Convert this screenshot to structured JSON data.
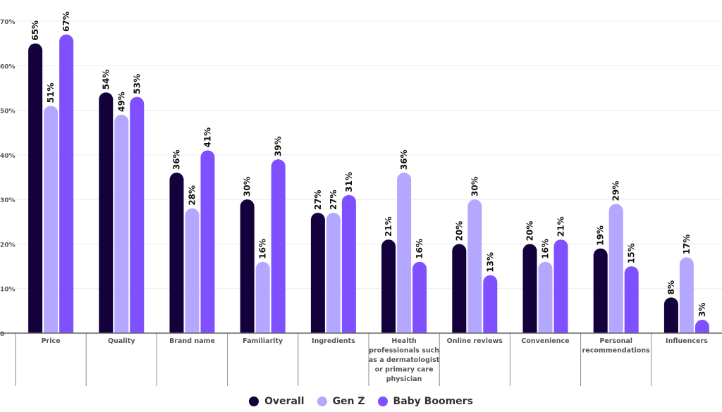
{
  "chart_data": {
    "type": "bar",
    "categories": [
      "Price",
      "Quality",
      "Brand name",
      "Familiarity",
      "Ingredients",
      "Health professionals such as a dermatologist or primary care physician",
      "Online reviews",
      "Convenience",
      "Personal recommendations",
      "Influencers"
    ],
    "category_lines": [
      [
        "Price"
      ],
      [
        "Quality"
      ],
      [
        "Brand name"
      ],
      [
        "Familiarity"
      ],
      [
        "Ingredients"
      ],
      [
        "Health",
        "professionals such",
        "as a dermatologist",
        "or primary care",
        "physician"
      ],
      [
        "Online reviews"
      ],
      [
        "Convenience"
      ],
      [
        "Personal",
        "recommendations"
      ],
      [
        "Influencers"
      ]
    ],
    "series": [
      {
        "name": "Overall",
        "color": "#14003a",
        "values": [
          65,
          54,
          36,
          30,
          27,
          21,
          20,
          20,
          19,
          8
        ]
      },
      {
        "name": "Gen Z",
        "color": "#b4a7ff",
        "values": [
          51,
          49,
          28,
          16,
          27,
          36,
          30,
          16,
          29,
          17
        ]
      },
      {
        "name": "Baby Boomers",
        "color": "#7f50ff",
        "values": [
          67,
          53,
          41,
          39,
          31,
          16,
          13,
          21,
          15,
          3
        ]
      }
    ],
    "ylim": [
      0,
      70
    ],
    "yticks": [
      "0",
      "10%",
      "20%",
      "30%",
      "40%",
      "50%",
      "60%",
      "70%"
    ],
    "grid": true,
    "legend_position": "bottom",
    "title": "",
    "xlabel": "",
    "ylabel": ""
  }
}
